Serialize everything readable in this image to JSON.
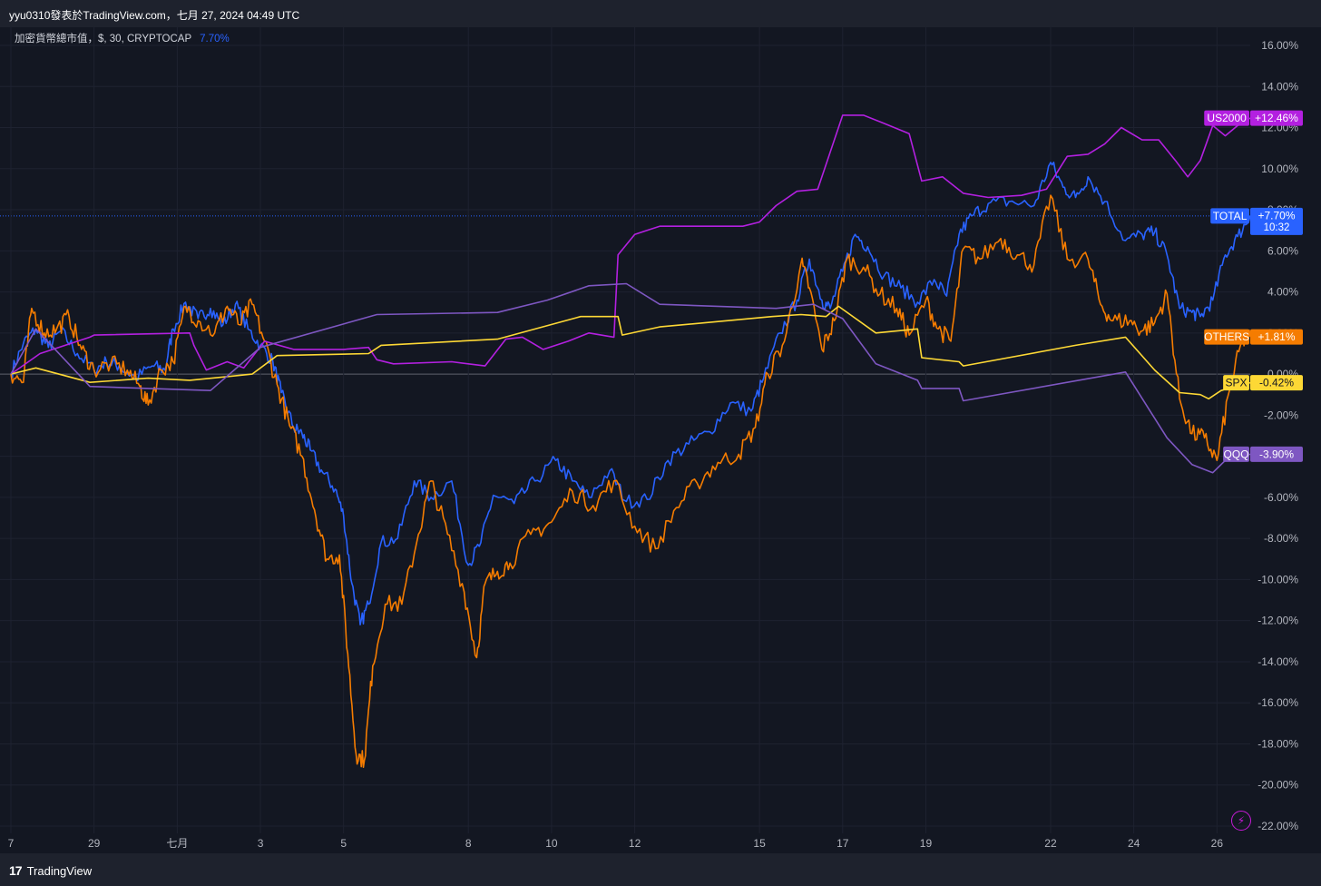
{
  "header": {
    "attribution": "yyu0310發表於TradingView.com，七月 27, 2024 04:49 UTC"
  },
  "legend": {
    "symbol": "加密貨幣總市值，$, 30, CRYPTOCAP",
    "value": "7.70%"
  },
  "footer": {
    "brand": "TradingView",
    "logo": "17"
  },
  "icons": {
    "brand_logo": "tradingview-logo-icon",
    "flash": "lightning-icon"
  },
  "chart_data": {
    "type": "line",
    "ylim": [
      -22,
      16
    ],
    "y_ticks": [
      16,
      14,
      12,
      10,
      8,
      6,
      4,
      2,
      0,
      -2,
      -4,
      -6,
      -8,
      -10,
      -12,
      -14,
      -16,
      -18,
      -20,
      -22
    ],
    "y_tick_labels": [
      "16.00%",
      "14.00%",
      "12.00%",
      "10.00%",
      "8.00%",
      "6.00%",
      "4.00%",
      "2.00%",
      "0.00%",
      "-2.00%",
      "-4.00%",
      "-6.00%",
      "-8.00%",
      "-10.00%",
      "-12.00%",
      "-14.00%",
      "-16.00%",
      "-18.00%",
      "-20.00%",
      "-22.00%"
    ],
    "x_tick_labels": [
      "7",
      "29",
      "七月",
      "3",
      "5",
      "8",
      "10",
      "12",
      "15",
      "17",
      "19",
      "22",
      "24",
      "26"
    ],
    "x_tick_index": [
      0,
      2,
      4,
      6,
      8,
      11,
      13,
      15,
      18,
      20,
      22,
      25,
      27,
      29
    ],
    "x_range": [
      0,
      29.8
    ],
    "grid": true,
    "series": [
      {
        "name": "TOTAL",
        "label": "+7.70%",
        "sublabel": "10:32",
        "color": "#2962ff",
        "last": 7.7,
        "points": [
          [
            0,
            0
          ],
          [
            0.3,
            1.5
          ],
          [
            0.6,
            2.2
          ],
          [
            0.9,
            1.3
          ],
          [
            1.2,
            2.1
          ],
          [
            1.6,
            1.0
          ],
          [
            2.0,
            0.2
          ],
          [
            2.3,
            0.6
          ],
          [
            2.6,
            0.4
          ],
          [
            3.0,
            -0.2
          ],
          [
            3.4,
            0.4
          ],
          [
            3.7,
            0.2
          ],
          [
            3.9,
            2.2
          ],
          [
            4.2,
            3.5
          ],
          [
            4.5,
            2.7
          ],
          [
            4.8,
            3.2
          ],
          [
            5.1,
            2.4
          ],
          [
            5.4,
            3.4
          ],
          [
            5.7,
            2.2
          ],
          [
            6.0,
            1.4
          ],
          [
            6.3,
            0.6
          ],
          [
            6.5,
            -0.9
          ],
          [
            6.8,
            -2.6
          ],
          [
            7.0,
            -2.9
          ],
          [
            7.2,
            -3.7
          ],
          [
            7.5,
            -4.8
          ],
          [
            7.8,
            -5.6
          ],
          [
            8.0,
            -6.9
          ],
          [
            8.2,
            -10.2
          ],
          [
            8.4,
            -12.2
          ],
          [
            8.6,
            -11.2
          ],
          [
            8.9,
            -8.2
          ],
          [
            9.3,
            -8.0
          ],
          [
            9.7,
            -5.2
          ],
          [
            10.1,
            -6.0
          ],
          [
            10.6,
            -5.2
          ],
          [
            11.0,
            -9.3
          ],
          [
            11.3,
            -8.2
          ],
          [
            11.6,
            -5.9
          ],
          [
            12.1,
            -6.3
          ],
          [
            12.6,
            -5.2
          ],
          [
            13.1,
            -4.2
          ],
          [
            13.5,
            -5.2
          ],
          [
            13.9,
            -6.0
          ],
          [
            14.4,
            -4.7
          ],
          [
            14.8,
            -6.2
          ],
          [
            15.3,
            -6.1
          ],
          [
            15.8,
            -4.2
          ],
          [
            16.3,
            -3.4
          ],
          [
            16.8,
            -2.8
          ],
          [
            17.3,
            -1.4
          ],
          [
            17.8,
            -1.8
          ],
          [
            18.1,
            -0.2
          ],
          [
            18.5,
            2.0
          ],
          [
            18.9,
            3.6
          ],
          [
            19.2,
            5.6
          ],
          [
            19.5,
            3.6
          ],
          [
            19.7,
            3.2
          ],
          [
            20.0,
            5.0
          ],
          [
            20.3,
            6.8
          ],
          [
            20.6,
            6.2
          ],
          [
            21.0,
            4.8
          ],
          [
            21.4,
            4.2
          ],
          [
            21.8,
            3.5
          ],
          [
            22.2,
            4.6
          ],
          [
            22.5,
            3.8
          ],
          [
            22.8,
            6.8
          ],
          [
            23.1,
            7.7
          ],
          [
            23.5,
            8.3
          ],
          [
            24.0,
            8.4
          ],
          [
            24.6,
            8.2
          ],
          [
            25.0,
            10.3
          ],
          [
            25.3,
            9.1
          ],
          [
            25.6,
            8.6
          ],
          [
            25.9,
            9.6
          ],
          [
            26.3,
            8.4
          ],
          [
            26.8,
            6.5
          ],
          [
            27.2,
            6.8
          ],
          [
            27.5,
            6.9
          ],
          [
            27.8,
            5.8
          ],
          [
            28.1,
            3.2
          ],
          [
            28.4,
            3.0
          ],
          [
            28.6,
            2.8
          ],
          [
            28.9,
            3.6
          ],
          [
            29.2,
            5.8
          ],
          [
            29.5,
            6.7
          ],
          [
            29.8,
            7.7
          ]
        ]
      },
      {
        "name": "OTHERS",
        "label": "+1.81%",
        "color": "#f57c00",
        "last": 1.81,
        "points": [
          [
            0,
            0
          ],
          [
            0.3,
            -0.4
          ],
          [
            0.5,
            3.2
          ],
          [
            0.8,
            2.0
          ],
          [
            1.1,
            2.2
          ],
          [
            1.4,
            2.8
          ],
          [
            1.7,
            1.2
          ],
          [
            2.0,
            0.2
          ],
          [
            2.4,
            0.5
          ],
          [
            2.8,
            0.2
          ],
          [
            3.1,
            -0.6
          ],
          [
            3.3,
            -1.5
          ],
          [
            3.6,
            0.2
          ],
          [
            3.9,
            0.6
          ],
          [
            4.2,
            3.3
          ],
          [
            4.5,
            2.6
          ],
          [
            4.9,
            2.0
          ],
          [
            5.2,
            3.3
          ],
          [
            5.5,
            2.4
          ],
          [
            5.8,
            3.4
          ],
          [
            6.1,
            1.6
          ],
          [
            6.4,
            -0.5
          ],
          [
            6.7,
            -2.5
          ],
          [
            7.0,
            -4.0
          ],
          [
            7.3,
            -6.6
          ],
          [
            7.6,
            -9.0
          ],
          [
            7.9,
            -8.8
          ],
          [
            8.1,
            -13.6
          ],
          [
            8.3,
            -18.5
          ],
          [
            8.5,
            -18.8
          ],
          [
            8.7,
            -14.2
          ],
          [
            9.0,
            -11.2
          ],
          [
            9.4,
            -11.2
          ],
          [
            9.8,
            -7.8
          ],
          [
            10.1,
            -5.2
          ],
          [
            10.5,
            -7.8
          ],
          [
            10.9,
            -10.6
          ],
          [
            11.2,
            -13.8
          ],
          [
            11.4,
            -10.2
          ],
          [
            11.7,
            -9.6
          ],
          [
            12.0,
            -9.2
          ],
          [
            12.5,
            -7.8
          ],
          [
            13.0,
            -7.2
          ],
          [
            13.5,
            -5.7
          ],
          [
            14.0,
            -6.4
          ],
          [
            14.5,
            -5.2
          ],
          [
            15.0,
            -7.4
          ],
          [
            15.5,
            -8.5
          ],
          [
            16.0,
            -6.5
          ],
          [
            16.5,
            -5.3
          ],
          [
            17.0,
            -4.3
          ],
          [
            17.5,
            -3.9
          ],
          [
            17.9,
            -2.6
          ],
          [
            18.2,
            0.0
          ],
          [
            18.6,
            1.6
          ],
          [
            19.0,
            5.4
          ],
          [
            19.2,
            4.2
          ],
          [
            19.5,
            1.2
          ],
          [
            19.8,
            2.6
          ],
          [
            20.1,
            5.6
          ],
          [
            20.5,
            5.2
          ],
          [
            20.9,
            3.9
          ],
          [
            21.3,
            3.2
          ],
          [
            21.6,
            1.9
          ],
          [
            22.0,
            3.6
          ],
          [
            22.3,
            2.2
          ],
          [
            22.6,
            1.6
          ],
          [
            22.9,
            6.1
          ],
          [
            23.3,
            5.6
          ],
          [
            23.8,
            6.6
          ],
          [
            24.2,
            5.8
          ],
          [
            24.6,
            5.3
          ],
          [
            25.0,
            8.7
          ],
          [
            25.4,
            5.6
          ],
          [
            25.9,
            5.6
          ],
          [
            26.2,
            3.4
          ],
          [
            26.5,
            2.6
          ],
          [
            26.9,
            2.6
          ],
          [
            27.2,
            2.1
          ],
          [
            27.5,
            2.5
          ],
          [
            27.8,
            3.9
          ],
          [
            28.1,
            -1.2
          ],
          [
            28.4,
            -2.9
          ],
          [
            28.7,
            -3.1
          ],
          [
            29.0,
            -4.2
          ],
          [
            29.3,
            -0.8
          ],
          [
            29.6,
            1.6
          ],
          [
            29.8,
            1.81
          ]
        ]
      },
      {
        "name": "US2000",
        "label": "+12.46%",
        "color": "#b320e0",
        "last": 12.46,
        "points": [
          [
            0,
            0
          ],
          [
            0.7,
            1.0
          ],
          [
            1.9,
            1.8
          ],
          [
            2.0,
            1.9
          ],
          [
            4.3,
            2.0
          ],
          [
            4.4,
            1.4
          ],
          [
            4.7,
            0.2
          ],
          [
            5.2,
            0.6
          ],
          [
            5.6,
            0.3
          ],
          [
            6.1,
            1.6
          ],
          [
            6.8,
            1.2
          ],
          [
            8.0,
            1.2
          ],
          [
            8.6,
            1.3
          ],
          [
            8.8,
            0.7
          ],
          [
            9.2,
            0.5
          ],
          [
            10.6,
            0.6
          ],
          [
            11.4,
            0.4
          ],
          [
            11.9,
            1.7
          ],
          [
            12.3,
            1.8
          ],
          [
            12.8,
            1.2
          ],
          [
            13.4,
            1.6
          ],
          [
            13.9,
            2.0
          ],
          [
            14.5,
            1.8
          ],
          [
            14.6,
            5.8
          ],
          [
            15.0,
            6.8
          ],
          [
            15.6,
            7.2
          ],
          [
            17.6,
            7.2
          ],
          [
            18.0,
            7.4
          ],
          [
            18.4,
            8.2
          ],
          [
            18.9,
            8.9
          ],
          [
            19.4,
            9.0
          ],
          [
            19.7,
            10.8
          ],
          [
            20.0,
            12.6
          ],
          [
            20.5,
            12.6
          ],
          [
            21.0,
            12.2
          ],
          [
            21.6,
            11.7
          ],
          [
            21.9,
            9.4
          ],
          [
            22.4,
            9.6
          ],
          [
            22.9,
            8.8
          ],
          [
            23.5,
            8.6
          ],
          [
            24.3,
            8.7
          ],
          [
            24.9,
            9.0
          ],
          [
            25.4,
            10.6
          ],
          [
            25.9,
            10.7
          ],
          [
            26.3,
            11.2
          ],
          [
            26.7,
            12.0
          ],
          [
            27.2,
            11.4
          ],
          [
            27.6,
            11.4
          ],
          [
            28.0,
            10.4
          ],
          [
            28.3,
            9.6
          ],
          [
            28.6,
            10.4
          ],
          [
            28.9,
            12.1
          ],
          [
            29.2,
            11.6
          ],
          [
            29.5,
            12.1
          ],
          [
            29.8,
            12.46
          ]
        ]
      },
      {
        "name": "SPX",
        "label": "-0.42%",
        "color": "#fdd835",
        "last": -0.42,
        "points": [
          [
            0,
            0
          ],
          [
            0.6,
            0.3
          ],
          [
            1.9,
            -0.4
          ],
          [
            3.3,
            -0.2
          ],
          [
            4.3,
            -0.3
          ],
          [
            5.3,
            -0.1
          ],
          [
            5.8,
            0.0
          ],
          [
            6.4,
            0.9
          ],
          [
            8.6,
            1.0
          ],
          [
            8.9,
            1.4
          ],
          [
            11.7,
            1.7
          ],
          [
            13.7,
            2.8
          ],
          [
            14.6,
            2.8
          ],
          [
            14.7,
            1.9
          ],
          [
            15.6,
            2.3
          ],
          [
            18.3,
            2.8
          ],
          [
            19.0,
            2.9
          ],
          [
            19.6,
            2.8
          ],
          [
            19.9,
            3.3
          ],
          [
            20.8,
            2.0
          ],
          [
            21.8,
            2.2
          ],
          [
            21.9,
            0.8
          ],
          [
            22.8,
            0.6
          ],
          [
            22.9,
            0.4
          ],
          [
            25.6,
            1.4
          ],
          [
            26.8,
            1.8
          ],
          [
            27.5,
            0.2
          ],
          [
            28.1,
            -0.9
          ],
          [
            28.6,
            -1.0
          ],
          [
            28.8,
            -1.2
          ],
          [
            29.1,
            -0.8
          ],
          [
            29.8,
            -0.42
          ]
        ]
      },
      {
        "name": "QQQ",
        "label": "-3.90%",
        "color": "#7e57c2",
        "last": -3.9,
        "points": [
          [
            0,
            0
          ],
          [
            0.6,
            2.2
          ],
          [
            1.9,
            -0.6
          ],
          [
            4.8,
            -0.8
          ],
          [
            6.0,
            1.3
          ],
          [
            8.8,
            2.9
          ],
          [
            11.7,
            3.0
          ],
          [
            12.9,
            3.6
          ],
          [
            13.9,
            4.3
          ],
          [
            14.8,
            4.4
          ],
          [
            15.6,
            3.4
          ],
          [
            18.4,
            3.2
          ],
          [
            19.3,
            3.4
          ],
          [
            20.0,
            2.7
          ],
          [
            20.8,
            0.5
          ],
          [
            21.8,
            -0.3
          ],
          [
            21.9,
            -0.7
          ],
          [
            22.8,
            -0.7
          ],
          [
            22.9,
            -1.3
          ],
          [
            26.8,
            0.1
          ],
          [
            27.8,
            -3.1
          ],
          [
            28.4,
            -4.4
          ],
          [
            28.9,
            -4.8
          ],
          [
            29.2,
            -4.2
          ],
          [
            29.8,
            -3.9
          ]
        ]
      }
    ]
  }
}
